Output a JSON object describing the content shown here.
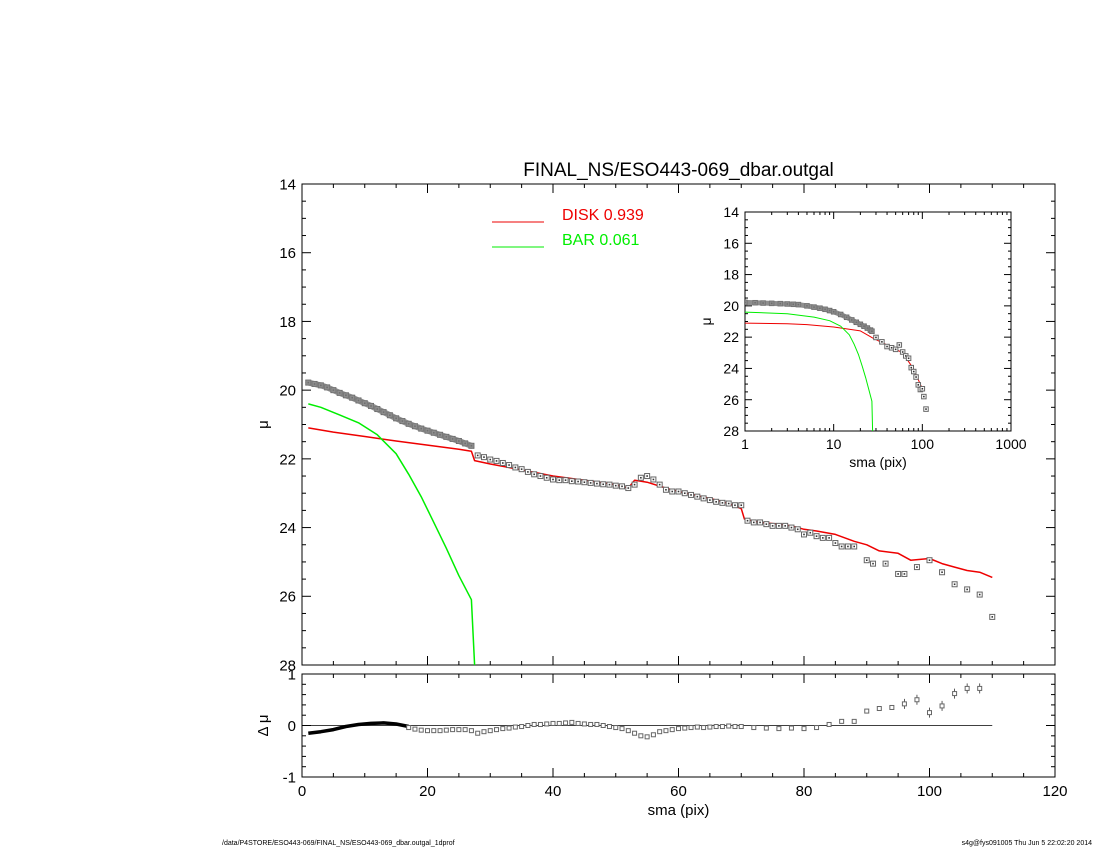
{
  "footer": {
    "path": "/data/P4STORE/ESO443-069/FINAL_NS/ESO443-069_dbar.outgal_1dprof",
    "stamp": "s4g@fys091005  Thu Jun  5 22:02:20 2014"
  },
  "colors": {
    "disk": "#ee0000",
    "bar": "#00ee00",
    "data": "#808080",
    "axis": "#000000"
  },
  "chart_data": [
    {
      "id": "main",
      "type": "line",
      "title": "FINAL_NS/ESO443-069_dbar.outgal",
      "xlabel": "",
      "ylabel": "μ",
      "xlim": [
        0,
        120
      ],
      "ylim": [
        28,
        14
      ],
      "xticks": [
        0,
        20,
        40,
        60,
        80,
        100,
        120
      ],
      "yticks": [
        14,
        16,
        18,
        20,
        22,
        24,
        26,
        28
      ],
      "legend": {
        "position": "top-center",
        "entries": [
          {
            "label": "DISK  0.939",
            "color": "#ee0000"
          },
          {
            "label": "BAR  0.061",
            "color": "#00ee00"
          }
        ]
      },
      "series": [
        {
          "name": "DISK  0.939",
          "kind": "line",
          "color": "#ee0000",
          "x": [
            1,
            5,
            10,
            15,
            20,
            25,
            27,
            27.5,
            30,
            35,
            40,
            45,
            50,
            52,
            53,
            55,
            58,
            60,
            65,
            68,
            70,
            70.5,
            73,
            76,
            78,
            80,
            82,
            85,
            88,
            90,
            92,
            95,
            97,
            100,
            102,
            104,
            106,
            108,
            110
          ],
          "y": [
            21.1,
            21.22,
            21.35,
            21.48,
            21.6,
            21.72,
            21.78,
            22.05,
            22.15,
            22.32,
            22.5,
            22.62,
            22.75,
            22.85,
            22.62,
            22.68,
            22.85,
            22.95,
            23.15,
            23.3,
            23.45,
            23.75,
            23.85,
            23.9,
            23.95,
            24.05,
            24.1,
            24.2,
            24.4,
            24.5,
            24.68,
            24.75,
            24.95,
            24.9,
            25.05,
            25.15,
            25.25,
            25.3,
            25.45
          ]
        },
        {
          "name": "BAR  0.061",
          "kind": "line",
          "color": "#00ee00",
          "x": [
            1,
            3,
            6,
            9,
            12,
            15,
            17,
            19,
            21,
            23,
            25,
            27,
            27.5
          ],
          "y": [
            20.4,
            20.5,
            20.72,
            20.95,
            21.3,
            21.85,
            22.45,
            23.1,
            23.85,
            24.6,
            25.4,
            26.1,
            28.0
          ]
        },
        {
          "name": "",
          "kind": "markers",
          "color": "#808080",
          "x": [
            1,
            2,
            3,
            4,
            5,
            6,
            7,
            8,
            9,
            10,
            11,
            12,
            13,
            14,
            15,
            16,
            17,
            18,
            19,
            20,
            21,
            22,
            23,
            24,
            25,
            26,
            27,
            28,
            29,
            30,
            31,
            32,
            33,
            34,
            35,
            36,
            37,
            38,
            39,
            40,
            41,
            42,
            43,
            44,
            45,
            46,
            47,
            48,
            49,
            50,
            51,
            52,
            53,
            54,
            55,
            56,
            57,
            58,
            59,
            60,
            61,
            62,
            63,
            64,
            65,
            66,
            67,
            68,
            69,
            70,
            71,
            72,
            73,
            74,
            75,
            76,
            77,
            78,
            79,
            80,
            81,
            82,
            83,
            84,
            85,
            86,
            87,
            88,
            90,
            91,
            93,
            95,
            96,
            98,
            100,
            102,
            104,
            106,
            108,
            110
          ],
          "y": [
            19.78,
            19.82,
            19.86,
            19.92,
            20.0,
            20.08,
            20.15,
            20.22,
            20.3,
            20.38,
            20.46,
            20.55,
            20.64,
            20.73,
            20.82,
            20.9,
            20.98,
            21.05,
            21.12,
            21.18,
            21.24,
            21.3,
            21.36,
            21.42,
            21.48,
            21.55,
            21.62,
            21.9,
            21.95,
            22.02,
            22.06,
            22.12,
            22.18,
            22.25,
            22.3,
            22.38,
            22.45,
            22.5,
            22.55,
            22.6,
            22.62,
            22.62,
            22.65,
            22.66,
            22.68,
            22.7,
            22.72,
            22.74,
            22.75,
            22.78,
            22.8,
            22.85,
            22.75,
            22.55,
            22.5,
            22.6,
            22.75,
            22.9,
            22.95,
            22.95,
            23.0,
            23.05,
            23.1,
            23.15,
            23.2,
            23.25,
            23.28,
            23.3,
            23.35,
            23.35,
            23.8,
            23.85,
            23.85,
            23.9,
            23.95,
            23.95,
            23.95,
            24.0,
            24.05,
            24.2,
            24.15,
            24.25,
            24.3,
            24.3,
            24.45,
            24.55,
            24.55,
            24.55,
            24.95,
            25.05,
            25.05,
            25.35,
            25.35,
            25.15,
            24.95,
            25.3,
            25.65,
            25.8,
            25.95,
            26.6
          ]
        }
      ]
    },
    {
      "id": "inset",
      "type": "line",
      "title": "",
      "xlabel": "sma (pix)",
      "ylabel": "μ",
      "xscale": "log",
      "xlim": [
        1,
        1000
      ],
      "ylim": [
        28,
        14
      ],
      "xticks": [
        1,
        10,
        100,
        1000
      ],
      "xticklabels": [
        "1",
        "10",
        "100",
        "1000"
      ],
      "yticks": [
        14,
        16,
        18,
        20,
        22,
        24,
        26,
        28
      ],
      "series": [
        {
          "name": "DISK  0.939",
          "kind": "line",
          "color": "#ee0000",
          "x": [
            1,
            3,
            5,
            10,
            20,
            27.5,
            40,
            60,
            80,
            100
          ],
          "y": [
            21.1,
            21.15,
            21.2,
            21.35,
            21.6,
            22.05,
            22.5,
            23.0,
            24.05,
            25.3
          ]
        },
        {
          "name": "BAR  0.061",
          "kind": "line",
          "color": "#00ee00",
          "x": [
            1,
            3,
            6,
            9,
            12,
            15,
            17,
            19,
            21,
            23,
            25,
            27,
            27.5
          ],
          "y": [
            20.4,
            20.5,
            20.72,
            20.95,
            21.3,
            21.85,
            22.45,
            23.1,
            23.85,
            24.6,
            25.4,
            26.1,
            28.0
          ]
        },
        {
          "name": "",
          "kind": "markers",
          "color": "#808080",
          "x": [
            1,
            1.3,
            1.6,
            2,
            2.5,
            3,
            3.5,
            4,
            5,
            6,
            7,
            8,
            9,
            10,
            12,
            14,
            16,
            18,
            20,
            22,
            24,
            26,
            27,
            30,
            35,
            40,
            45,
            50,
            55,
            60,
            65,
            70,
            75,
            80,
            85,
            90,
            95,
            100,
            104,
            110
          ],
          "y": [
            19.78,
            19.8,
            19.82,
            19.84,
            19.86,
            19.88,
            19.9,
            19.92,
            20.0,
            20.08,
            20.15,
            20.22,
            20.3,
            20.38,
            20.55,
            20.73,
            20.9,
            21.05,
            21.18,
            21.3,
            21.42,
            21.55,
            21.62,
            22.02,
            22.3,
            22.6,
            22.68,
            22.78,
            22.5,
            22.95,
            23.2,
            23.35,
            23.95,
            24.2,
            24.55,
            25.05,
            25.35,
            25.3,
            25.8,
            26.6
          ]
        }
      ]
    },
    {
      "id": "residual",
      "type": "scatter",
      "title": "",
      "xlabel": "sma (pix)",
      "ylabel": "Δ μ",
      "xlim": [
        0,
        120
      ],
      "ylim": [
        -1,
        1
      ],
      "xticks": [
        0,
        20,
        40,
        60,
        80,
        100,
        120
      ],
      "yticks": [
        -1,
        0,
        1
      ],
      "series": [
        {
          "name": "",
          "kind": "line",
          "color": "#000000",
          "x": [
            1,
            3,
            5,
            7,
            9,
            11,
            13,
            15,
            17
          ],
          "y": [
            -0.15,
            -0.12,
            -0.08,
            -0.02,
            0.02,
            0.04,
            0.05,
            0.03,
            -0.02
          ]
        },
        {
          "name": "",
          "kind": "markers",
          "color": "#808080",
          "x": [
            17,
            18,
            19,
            20,
            21,
            22,
            23,
            24,
            25,
            26,
            27,
            28,
            29,
            30,
            31,
            32,
            33,
            34,
            35,
            36,
            37,
            38,
            39,
            40,
            41,
            42,
            43,
            44,
            45,
            46,
            47,
            48,
            49,
            50,
            51,
            52,
            53,
            54,
            55,
            56,
            57,
            58,
            59,
            60,
            61,
            62,
            63,
            64,
            65,
            66,
            67,
            68,
            69,
            70,
            72,
            74,
            76,
            78,
            80,
            82,
            84,
            86,
            88,
            90,
            92,
            94,
            96,
            98,
            100,
            102,
            104,
            106,
            108
          ],
          "y": [
            -0.04,
            -0.07,
            -0.09,
            -0.1,
            -0.1,
            -0.1,
            -0.09,
            -0.08,
            -0.08,
            -0.08,
            -0.1,
            -0.15,
            -0.12,
            -0.1,
            -0.08,
            -0.06,
            -0.05,
            -0.03,
            -0.02,
            0.0,
            0.02,
            0.02,
            0.03,
            0.04,
            0.04,
            0.05,
            0.06,
            0.04,
            0.03,
            0.02,
            0.02,
            0.0,
            -0.02,
            -0.04,
            -0.06,
            -0.1,
            -0.15,
            -0.2,
            -0.22,
            -0.18,
            -0.12,
            -0.1,
            -0.08,
            -0.06,
            -0.05,
            -0.04,
            -0.03,
            -0.04,
            -0.03,
            -0.02,
            -0.02,
            -0.01,
            -0.02,
            -0.02,
            -0.04,
            -0.05,
            -0.06,
            -0.05,
            -0.06,
            -0.04,
            0.02,
            0.08,
            0.08,
            0.28,
            0.33,
            0.35,
            0.42,
            0.5,
            0.25,
            0.38,
            0.62,
            0.72,
            0.72
          ]
        }
      ]
    }
  ]
}
